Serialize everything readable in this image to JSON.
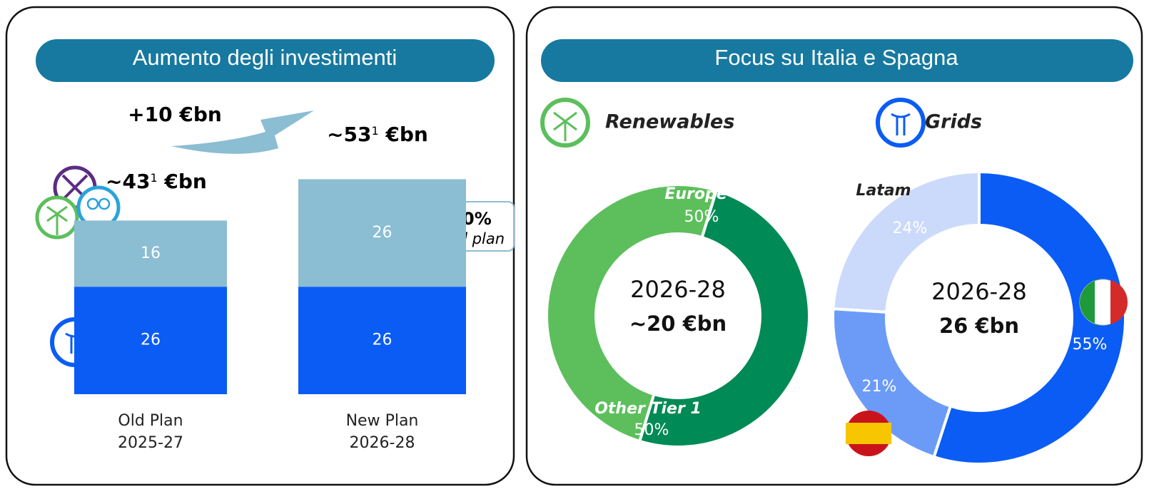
{
  "panel_title": "Focus su Italia e Spagna",
  "chart_data": [
    {
      "type": "bar",
      "stacked": true,
      "title": "Aumento degli investimenti",
      "categories": [
        [
          "Old Plan",
          "2025-27"
        ],
        [
          "New Plan",
          "2026-28"
        ]
      ],
      "series": [
        {
          "color": "#0a5cf5",
          "values": [
            26,
            26
          ]
        },
        {
          "color": "#8bbdd3",
          "values": [
            16,
            26
          ]
        }
      ],
      "ylim": [
        0,
        60
      ],
      "total_labels": [
        [
          "~43",
          "1",
          " €bn"
        ],
        [
          "~53",
          "1",
          " €bn"
        ]
      ],
      "delta_label": "+10 €bn",
      "growth_label": "+60%",
      "growth_note": "vs old plan"
    },
    {
      "type": "pie",
      "donut": true,
      "title": "Renewables",
      "start_angle": 17,
      "categories": [
        "Europe",
        "Other Tier 1"
      ],
      "values": [
        50,
        50
      ],
      "value_labels": [
        "50%",
        "50%"
      ],
      "colors": [
        "#008a55",
        "#5cbf5c"
      ],
      "center_labels": [
        "2026-28",
        "~20 €bn"
      ]
    },
    {
      "type": "pie",
      "donut": true,
      "title": "Grids",
      "start_angle": 0,
      "categories": [
        null,
        null,
        "Latam"
      ],
      "values": [
        55,
        21,
        24
      ],
      "value_labels": [
        "55%",
        "21%",
        "24%"
      ],
      "colors": [
        "#0a5cf5",
        "#6b9bf7",
        "#cbdafb"
      ],
      "center_labels": [
        "2026-28",
        "26 €bn"
      ]
    }
  ]
}
